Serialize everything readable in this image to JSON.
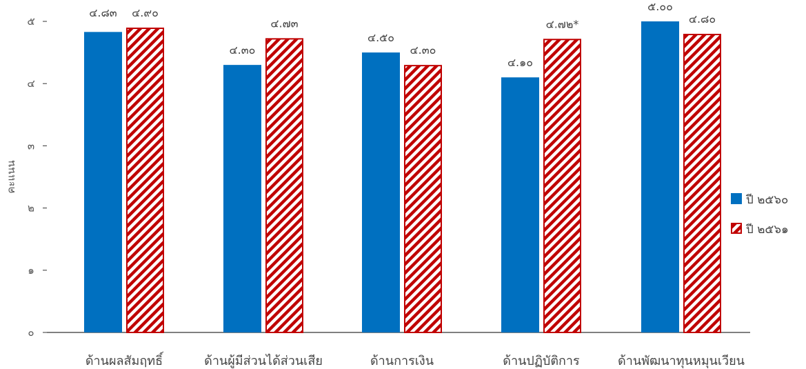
{
  "chart_data": {
    "type": "bar",
    "title": "",
    "xlabel": "",
    "ylabel": "คะแนน",
    "ylim": [
      0,
      5
    ],
    "yticks": [
      0,
      1,
      2,
      3,
      4,
      5
    ],
    "ytick_labels": [
      "๐",
      "๑",
      "๒",
      "๓",
      "๔",
      "๕"
    ],
    "grid": false,
    "legend_position": "right",
    "categories": [
      "ด้านผลสัมฤทธิ์",
      "ด้านผู้มีส่วนได้ส่วนเสีย",
      "ด้านการเงิน",
      "ด้านปฏิบัติการ",
      "ด้านพัฒนาทุนหมุนเวียน"
    ],
    "series": [
      {
        "name": "ปี ๒๕๖๐",
        "color": "#0070C0",
        "pattern": "solid",
        "values": [
          4.83,
          4.3,
          4.5,
          4.1,
          5.0
        ],
        "labels": [
          "๔.๘๓",
          "๔.๓๐",
          "๔.๕๐",
          "๔.๑๐",
          "๕.๐๐"
        ]
      },
      {
        "name": "ปี ๒๕๖๑",
        "color": "#C00000",
        "pattern": "diagonal-hatch",
        "values": [
          4.9,
          4.73,
          4.3,
          4.72,
          4.8
        ],
        "labels": [
          "๔.๙๐",
          "๔.๗๓",
          "๔.๓๐",
          "๔.๗๒*",
          "๔.๘๐"
        ]
      }
    ]
  }
}
